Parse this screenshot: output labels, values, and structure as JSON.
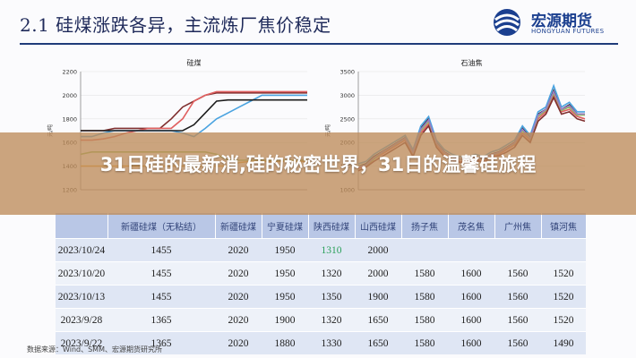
{
  "slide": {
    "title": "2.1 硅煤涨跌各异，主流炼厂焦价稳定",
    "logo": {
      "cn": "宏源期货",
      "en": "HONGYUAN FUTURES"
    },
    "source": "数据来源：Wind、SMM、宏源期货研究所"
  },
  "banner": {
    "text": "31日硅的最新消,硅的秘密世界，31日的温馨硅旅程"
  },
  "colors": {
    "title": "#1f2a5a",
    "accent": "#1f3b7a",
    "table_header": "#b9c7e6",
    "banner": "#be8c5a",
    "highlight": "#2aa05a"
  },
  "chart_data": [
    {
      "type": "line",
      "title": "硅煤",
      "ylabel": "元/吨",
      "ylim": [
        1200,
        2200
      ],
      "yticks": [
        "2200",
        "2000",
        "1800",
        "1600",
        "1400",
        "1200"
      ],
      "x": [
        0,
        1,
        2,
        3,
        4,
        5,
        6,
        7,
        8,
        9,
        10,
        11,
        12,
        13,
        14,
        15,
        16,
        17,
        18,
        19,
        20
      ],
      "series": [
        {
          "color": "#7f2f2f",
          "values": [
            1700,
            1700,
            1700,
            1720,
            1720,
            1720,
            1720,
            1720,
            1800,
            1900,
            1950,
            2000,
            2020,
            2020,
            2020,
            2020,
            2020,
            2020,
            2020,
            2020,
            2020
          ]
        },
        {
          "color": "#e06060",
          "values": [
            1620,
            1620,
            1630,
            1650,
            1680,
            1700,
            1720,
            1720,
            1720,
            1800,
            1950,
            2000,
            2030,
            2030,
            2030,
            2030,
            2030,
            2030,
            2030,
            2030,
            2030
          ]
        },
        {
          "color": "#4aa3e0",
          "values": [
            1650,
            1650,
            1680,
            1700,
            1700,
            1700,
            1700,
            1700,
            1700,
            1680,
            1650,
            1720,
            1800,
            1850,
            1900,
            1950,
            2000,
            2000,
            2000,
            2000,
            2000
          ]
        },
        {
          "color": "#1c1c1c",
          "values": [
            1700,
            1700,
            1700,
            1700,
            1700,
            1700,
            1700,
            1700,
            1700,
            1700,
            1750,
            1850,
            1950,
            1960,
            1960,
            1960,
            1960,
            1960,
            1960,
            1960,
            1960
          ]
        },
        {
          "color": "#8fbc5a",
          "values": [
            1500,
            1520,
            1520,
            1520,
            1520,
            1520,
            1520,
            1520,
            1520,
            1520,
            1520,
            1520,
            1500,
            1450,
            1450,
            1450,
            1450,
            1450,
            1450,
            1450,
            1450
          ]
        },
        {
          "color": "#e8a33a",
          "values": [
            1400,
            1400,
            1400,
            1400,
            1400,
            1400,
            1400,
            1400,
            1400,
            1400,
            1400,
            1400,
            1400,
            1400,
            1430,
            1440,
            1440,
            1440,
            1440,
            1440,
            1440
          ]
        }
      ]
    },
    {
      "type": "line",
      "title": "石油焦",
      "ylabel": "元/吨",
      "ylim": [
        1000,
        3500
      ],
      "yticks": [
        "3500",
        "3000",
        "2500",
        "2000",
        "1500",
        "1000"
      ],
      "x": [
        0,
        1,
        2,
        3,
        4,
        5,
        6,
        7,
        8,
        9,
        10,
        11,
        12,
        13,
        14,
        15,
        16,
        17,
        18,
        19,
        20,
        21,
        22,
        23,
        24,
        25,
        26,
        27,
        28,
        29
      ],
      "series": [
        {
          "color": "#1c1c1c",
          "values": [
            1500,
            1550,
            1700,
            1800,
            1900,
            2000,
            2100,
            1800,
            2300,
            2500,
            2000,
            1800,
            1700,
            1650,
            1650,
            1700,
            1650,
            1750,
            1800,
            1900,
            2000,
            2300,
            2100,
            2600,
            2700,
            3100,
            2700,
            2800,
            2600,
            2600
          ]
        },
        {
          "color": "#e06060",
          "values": [
            1450,
            1500,
            1650,
            1750,
            1850,
            1950,
            2050,
            1750,
            2200,
            2400,
            1950,
            1750,
            1650,
            1600,
            1600,
            1650,
            1600,
            1700,
            1750,
            1850,
            1950,
            2200,
            2050,
            2500,
            2650,
            3000,
            2650,
            2700,
            2550,
            2500
          ]
        },
        {
          "color": "#7f2f2f",
          "values": [
            1400,
            1480,
            1600,
            1700,
            1800,
            1900,
            2000,
            1700,
            2150,
            2350,
            1900,
            1700,
            1620,
            1580,
            1580,
            1620,
            1580,
            1680,
            1720,
            1800,
            1900,
            2150,
            2000,
            2450,
            2600,
            2950,
            2600,
            2650,
            2500,
            2450
          ]
        },
        {
          "color": "#4aa3e0",
          "values": [
            1550,
            1600,
            1750,
            1850,
            1950,
            2050,
            2150,
            1850,
            2350,
            2550,
            2050,
            1850,
            1750,
            1700,
            1700,
            1750,
            1700,
            1800,
            1850,
            1950,
            2050,
            2350,
            2150,
            2650,
            2750,
            3200,
            2750,
            2850,
            2650,
            2650
          ]
        },
        {
          "color": "#8fbc5a",
          "values": [
            1500,
            1520,
            1650,
            1780,
            1880,
            1980,
            2080,
            1780,
            2250,
            2450,
            1980,
            1780,
            1680,
            1640,
            1640,
            1680,
            1640,
            1730,
            1780,
            1880,
            1980,
            2250,
            2080,
            2550,
            2680,
            3050,
            2680,
            2750,
            2580,
            2580
          ]
        },
        {
          "color": "#9b7cc4",
          "values": [
            1480,
            1530,
            1680,
            1790,
            1890,
            1990,
            2090,
            1790,
            2280,
            2480,
            1990,
            1790,
            1690,
            1650,
            1650,
            1690,
            1650,
            1740,
            1790,
            1890,
            1990,
            2280,
            2090,
            2580,
            2700,
            3080,
            2700,
            2780,
            2600,
            2600
          ]
        }
      ]
    },
    {
      "type": "table",
      "headers": [
        "",
        "新疆硅煤（无粘结）",
        "新疆硅煤",
        "宁夏硅煤",
        "陕西硅煤",
        "山西硅煤",
        "扬子焦",
        "茂名焦",
        "广州焦",
        "镇河焦"
      ],
      "rows": [
        [
          "2023/10/24",
          "1455",
          "2020",
          "1950",
          "1310",
          "2000",
          "",
          "",
          "",
          ""
        ],
        [
          "2023/10/20",
          "1455",
          "2020",
          "1950",
          "1320",
          "2000",
          "1580",
          "1600",
          "1560",
          "1520"
        ],
        [
          "2023/10/13",
          "1455",
          "2020",
          "1950",
          "1350",
          "1900",
          "1580",
          "1600",
          "1560",
          "1520"
        ],
        [
          "2023/9/28",
          "1365",
          "2020",
          "1900",
          "1320",
          "1650",
          "1580",
          "1600",
          "1560",
          "1520"
        ],
        [
          "2023/9/22",
          "1365",
          "2020",
          "1880",
          "1330",
          "1650",
          "1580",
          "1600",
          "1560",
          "1490"
        ]
      ]
    }
  ]
}
